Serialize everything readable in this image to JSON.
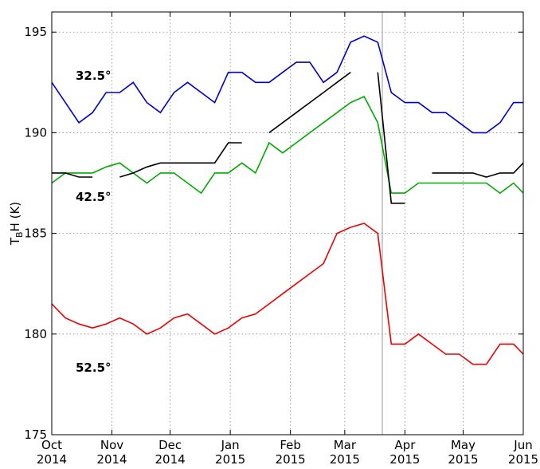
{
  "chart_data": {
    "type": "line",
    "y_label": {
      "main": "T",
      "sub": "B",
      "rest": "H (K)"
    },
    "x": [
      "2014-10-01",
      "2014-10-08",
      "2014-10-15",
      "2014-10-22",
      "2014-10-29",
      "2014-11-05",
      "2014-11-12",
      "2014-11-19",
      "2014-11-26",
      "2014-12-03",
      "2014-12-10",
      "2014-12-17",
      "2014-12-24",
      "2014-12-31",
      "2015-01-07",
      "2015-01-14",
      "2015-01-21",
      "2015-01-28",
      "2015-02-04",
      "2015-02-11",
      "2015-02-18",
      "2015-02-25",
      "2015-03-04",
      "2015-03-11",
      "2015-03-18",
      "2015-03-25",
      "2015-04-01",
      "2015-04-08",
      "2015-04-15",
      "2015-04-22",
      "2015-04-29",
      "2015-05-06",
      "2015-05-13",
      "2015-05-20",
      "2015-05-27",
      "2015-06-01"
    ],
    "series": [
      {
        "name": "32.5°",
        "color": "#0000cc",
        "values": [
          192.5,
          191.5,
          190.5,
          191,
          192,
          192,
          192.5,
          191.5,
          191,
          192,
          192.5,
          192,
          191.5,
          193,
          193,
          192.5,
          192.5,
          193,
          193.5,
          193.5,
          192.5,
          193,
          194.5,
          194.8,
          194.5,
          192,
          191.5,
          191.5,
          191,
          191,
          190.5,
          190,
          190,
          190.5,
          191.5,
          191.5
        ]
      },
      {
        "name": "42.5°",
        "color": "#00aa00",
        "values": [
          187.5,
          188,
          188,
          188,
          188.3,
          188.5,
          188,
          187.5,
          188,
          188,
          187.5,
          187,
          188,
          188,
          188.5,
          188,
          189.5,
          189,
          189.5,
          190,
          190.5,
          191,
          191.5,
          191.8,
          190.5,
          187,
          187,
          187.5,
          187.5,
          187.5,
          187.5,
          187.5,
          187.5,
          187,
          187.5,
          187
        ]
      },
      {
        "name": "52.5°",
        "color": "#ee0000",
        "values": [
          181.5,
          180.8,
          180.5,
          180.3,
          180.5,
          180.8,
          180.5,
          180,
          180.3,
          180.8,
          181,
          180.5,
          180,
          180.3,
          180.8,
          181,
          181.5,
          182,
          182.5,
          183,
          183.5,
          185,
          185.3,
          185.5,
          185,
          179.5,
          179.5,
          180,
          179.5,
          179,
          179,
          178.5,
          178.5,
          179.5,
          179.5,
          179
        ]
      },
      {
        "color": "#000000",
        "values": [
          188,
          188,
          187.8,
          187.8,
          null,
          187.8,
          188,
          188.3,
          188.5,
          188.5,
          188.5,
          188.5,
          188.5,
          189.5,
          189.5,
          null,
          190,
          190.5,
          191,
          191.5,
          192,
          192.5,
          193,
          null,
          193,
          186.5,
          186.5,
          null,
          188,
          188,
          188,
          188,
          187.8,
          188,
          188,
          188.5
        ]
      }
    ],
    "xlim": [
      "2014-10",
      "2015-06"
    ],
    "xticks": [
      {
        "value": "2014-10",
        "label": "Oct 2014"
      },
      {
        "value": "2014-11",
        "label": "Nov 2014"
      },
      {
        "value": "2014-12",
        "label": "Dec 2014"
      },
      {
        "value": "2015-01",
        "label": "Jan 2015"
      },
      {
        "value": "2015-02",
        "label": "Feb 2015"
      },
      {
        "value": "2015-03",
        "label": "Mar 2015"
      },
      {
        "value": "2015-04",
        "label": "Apr 2015"
      },
      {
        "value": "2015-05",
        "label": "May 2015"
      },
      {
        "value": "2015-06",
        "label": "Jun 2015"
      }
    ],
    "ylim": [
      175,
      196
    ],
    "yticks": [
      175,
      180,
      185,
      190,
      195
    ],
    "grid": true
  }
}
